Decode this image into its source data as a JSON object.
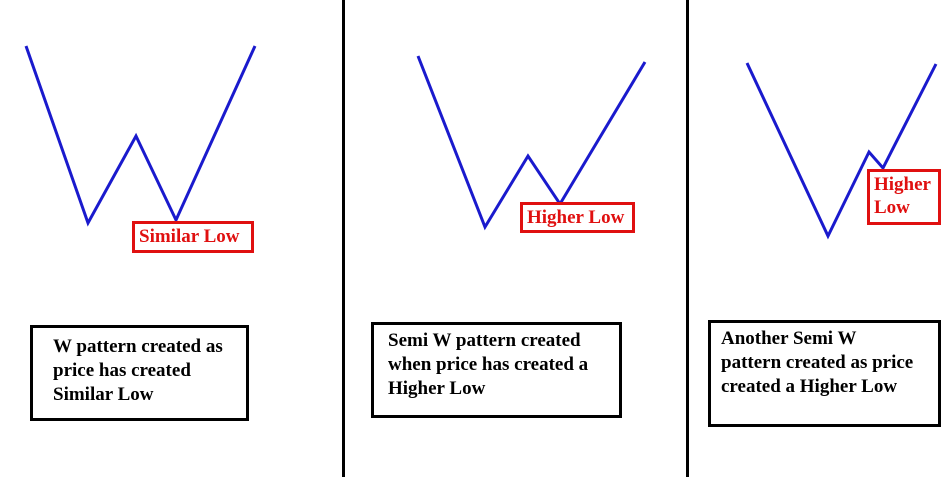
{
  "colors": {
    "line": "#1a1acd",
    "label": "#e01010",
    "divider": "#000000",
    "box_border": "#000000"
  },
  "panels": [
    {
      "pattern": "W pattern",
      "label": "Similar Low",
      "description": [
        "W pattern created as",
        "price has created",
        "Similar Low"
      ]
    },
    {
      "pattern": "Semi W pattern",
      "label": "Higher Low",
      "description": [
        "Semi W pattern created",
        "when price has created a",
        "Higher Low"
      ]
    },
    {
      "pattern": "Another Semi W pattern",
      "label": [
        "Higher",
        "Low"
      ],
      "description": [
        "Another Semi W",
        "pattern created as price",
        "created a Higher Low"
      ]
    }
  ]
}
